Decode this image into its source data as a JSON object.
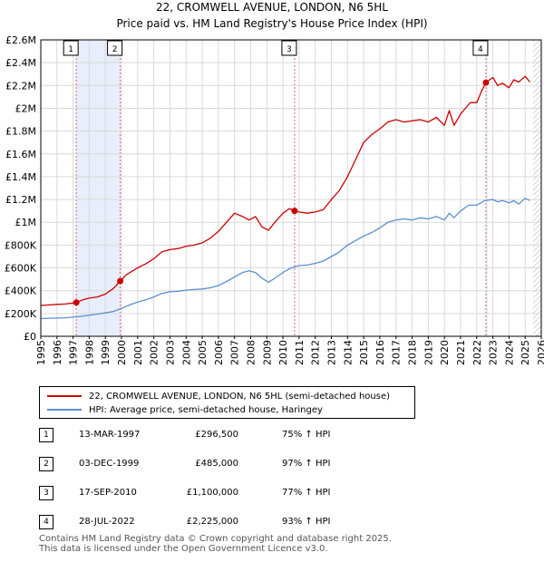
{
  "chart_data": {
    "type": "line",
    "title": "22, CROMWELL AVENUE, LONDON, N6 5HL",
    "subtitle": "Price paid vs. HM Land Registry's House Price Index (HPI)",
    "xlim": [
      1995,
      2026
    ],
    "ylim": [
      0,
      2600000
    ],
    "x_ticks": [
      "1995",
      "1996",
      "1997",
      "1998",
      "1999",
      "2000",
      "2001",
      "2002",
      "2003",
      "2004",
      "2005",
      "2006",
      "2007",
      "2008",
      "2009",
      "2010",
      "2011",
      "2012",
      "2013",
      "2014",
      "2015",
      "2016",
      "2017",
      "2018",
      "2019",
      "2020",
      "2021",
      "2022",
      "2023",
      "2024",
      "2025",
      "2026"
    ],
    "y_ticks": [
      {
        "value": 0,
        "label": "£0"
      },
      {
        "value": 200000,
        "label": "£200K"
      },
      {
        "value": 400000,
        "label": "£400K"
      },
      {
        "value": 600000,
        "label": "£600K"
      },
      {
        "value": 800000,
        "label": "£800K"
      },
      {
        "value": 1000000,
        "label": "£1M"
      },
      {
        "value": 1200000,
        "label": "£1.2M"
      },
      {
        "value": 1400000,
        "label": "£1.4M"
      },
      {
        "value": 1600000,
        "label": "£1.6M"
      },
      {
        "value": 1800000,
        "label": "£1.8M"
      },
      {
        "value": 2000000,
        "label": "£2M"
      },
      {
        "value": 2200000,
        "label": "£2.2M"
      },
      {
        "value": 2400000,
        "label": "£2.4M"
      },
      {
        "value": 2600000,
        "label": "£2.6M"
      }
    ],
    "grid": true,
    "shaded_ranges": [
      [
        1997.2,
        1999.92
      ],
      [
        2022.57,
        2022.7
      ]
    ],
    "future_hatch_start": 2025.5,
    "series": [
      {
        "name": "22, CROMWELL AVENUE, LONDON, N6 5HL (semi-detached house)",
        "color": "#cc0000",
        "x": [
          1995.0,
          1995.5,
          1996.0,
          1996.5,
          1997.0,
          1997.2,
          1997.6,
          1998.0,
          1998.5,
          1999.0,
          1999.5,
          1999.92,
          2000.3,
          2000.7,
          2001.0,
          2001.5,
          2002.0,
          2002.5,
          2003.0,
          2003.5,
          2004.0,
          2004.5,
          2005.0,
          2005.5,
          2006.0,
          2006.5,
          2007.0,
          2007.5,
          2007.9,
          2008.3,
          2008.7,
          2009.1,
          2009.5,
          2010.0,
          2010.4,
          2010.72,
          2011.0,
          2011.5,
          2012.0,
          2012.5,
          2013.0,
          2013.5,
          2014.0,
          2014.5,
          2015.0,
          2015.5,
          2016.0,
          2016.5,
          2017.0,
          2017.5,
          2018.0,
          2018.5,
          2019.0,
          2019.5,
          2020.0,
          2020.3,
          2020.6,
          2021.0,
          2021.3,
          2021.6,
          2022.0,
          2022.3,
          2022.57,
          2022.8,
          2023.0,
          2023.3,
          2023.6,
          2024.0,
          2024.3,
          2024.6,
          2025.0,
          2025.3
        ],
        "values": [
          270000,
          275000,
          280000,
          283000,
          292000,
          296500,
          320000,
          335000,
          345000,
          370000,
          420000,
          485000,
          540000,
          575000,
          600000,
          635000,
          680000,
          740000,
          760000,
          770000,
          790000,
          800000,
          820000,
          860000,
          920000,
          1000000,
          1080000,
          1050000,
          1020000,
          1050000,
          960000,
          930000,
          1000000,
          1080000,
          1120000,
          1100000,
          1090000,
          1080000,
          1090000,
          1110000,
          1200000,
          1280000,
          1400000,
          1550000,
          1700000,
          1770000,
          1820000,
          1880000,
          1900000,
          1880000,
          1890000,
          1900000,
          1880000,
          1920000,
          1850000,
          1980000,
          1850000,
          1950000,
          2000000,
          2050000,
          2050000,
          2150000,
          2225000,
          2250000,
          2270000,
          2200000,
          2220000,
          2180000,
          2250000,
          2230000,
          2280000,
          2230000
        ]
      },
      {
        "name": "HPI: Average price, semi-detached house, Haringey",
        "color": "#5b8fd1",
        "x": [
          1995.0,
          1995.5,
          1996.0,
          1996.5,
          1997.0,
          1997.5,
          1998.0,
          1998.5,
          1999.0,
          1999.5,
          2000.0,
          2000.5,
          2001.0,
          2001.5,
          2002.0,
          2002.5,
          2003.0,
          2003.5,
          2004.0,
          2004.5,
          2005.0,
          2005.5,
          2006.0,
          2006.5,
          2007.0,
          2007.5,
          2007.9,
          2008.3,
          2008.7,
          2009.1,
          2009.5,
          2010.0,
          2010.5,
          2011.0,
          2011.5,
          2012.0,
          2012.5,
          2013.0,
          2013.5,
          2014.0,
          2014.5,
          2015.0,
          2015.5,
          2016.0,
          2016.5,
          2017.0,
          2017.5,
          2018.0,
          2018.5,
          2019.0,
          2019.5,
          2020.0,
          2020.3,
          2020.6,
          2021.0,
          2021.5,
          2022.0,
          2022.5,
          2023.0,
          2023.3,
          2023.6,
          2024.0,
          2024.3,
          2024.6,
          2025.0,
          2025.3
        ],
        "values": [
          155000,
          158000,
          160000,
          162000,
          168000,
          175000,
          185000,
          195000,
          205000,
          218000,
          245000,
          275000,
          300000,
          320000,
          345000,
          375000,
          390000,
          395000,
          405000,
          410000,
          415000,
          425000,
          445000,
          480000,
          520000,
          560000,
          575000,
          560000,
          510000,
          475000,
          510000,
          560000,
          600000,
          620000,
          625000,
          640000,
          660000,
          700000,
          740000,
          800000,
          840000,
          880000,
          910000,
          950000,
          1000000,
          1020000,
          1030000,
          1020000,
          1040000,
          1030000,
          1050000,
          1020000,
          1080000,
          1040000,
          1100000,
          1150000,
          1150000,
          1190000,
          1200000,
          1180000,
          1190000,
          1170000,
          1190000,
          1160000,
          1210000,
          1190000
        ]
      }
    ],
    "sales": [
      {
        "marker": "1",
        "x": 1997.2,
        "price": 296500
      },
      {
        "marker": "2",
        "x": 1999.92,
        "price": 485000
      },
      {
        "marker": "3",
        "x": 2010.72,
        "price": 1100000
      },
      {
        "marker": "4",
        "x": 2022.57,
        "price": 2225000
      }
    ]
  },
  "legend": {
    "property_label": "22, CROMWELL AVENUE, LONDON, N6 5HL (semi-detached house)",
    "hpi_label": "HPI: Average price, semi-detached house, Haringey"
  },
  "transactions": [
    {
      "marker": "1",
      "date": "13-MAR-1997",
      "price": "£296,500",
      "hpi": "75% ↑ HPI"
    },
    {
      "marker": "2",
      "date": "03-DEC-1999",
      "price": "£485,000",
      "hpi": "97% ↑ HPI"
    },
    {
      "marker": "3",
      "date": "17-SEP-2010",
      "price": "£1,100,000",
      "hpi": "77% ↑ HPI"
    },
    {
      "marker": "4",
      "date": "28-JUL-2022",
      "price": "£2,225,000",
      "hpi": "93% ↑ HPI"
    }
  ],
  "footer": {
    "line1": "Contains HM Land Registry data © Crown copyright and database right 2025.",
    "line2": "This data is licensed under the Open Government Licence v3.0."
  },
  "colors": {
    "property": "#cc0000",
    "hpi": "#5b8fd1",
    "shade": "#e8eefb",
    "grid": "#d9d9d9"
  }
}
